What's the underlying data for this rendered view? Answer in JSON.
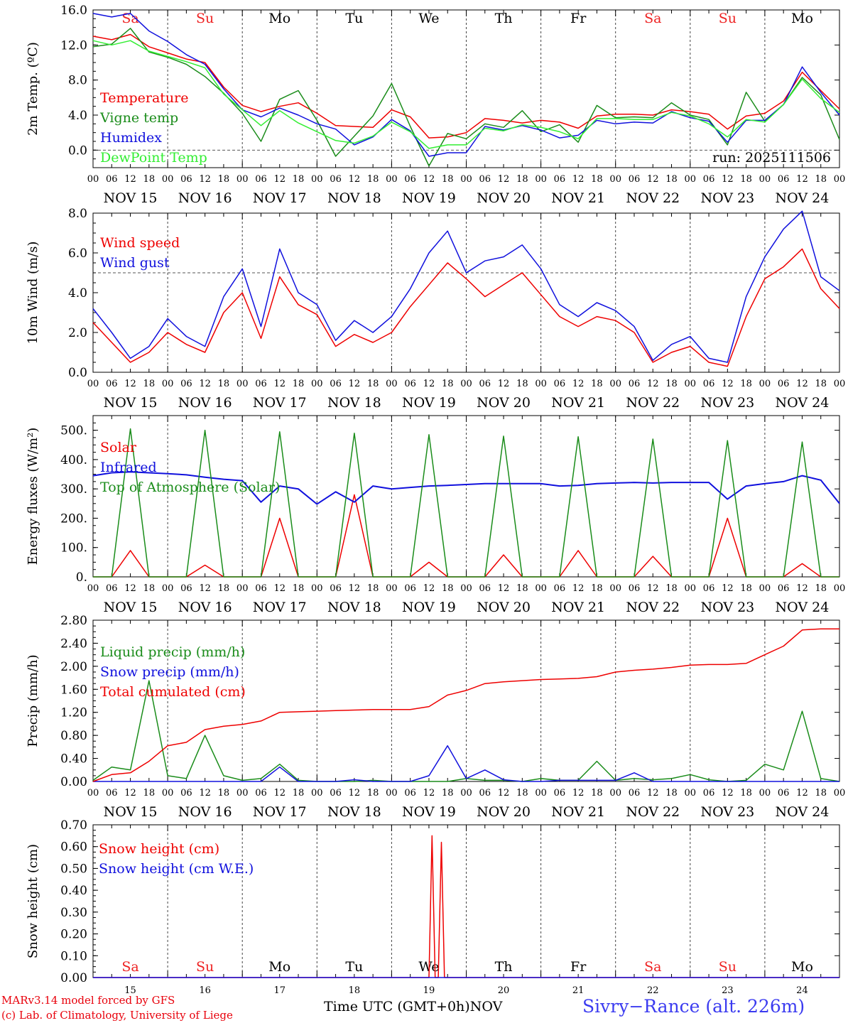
{
  "chart_data": [
    {
      "type": "line",
      "ylabel": "2m Temp. (ºC)",
      "ylim": [
        -2.0,
        16.0
      ],
      "yticks": [
        0.0,
        4.0,
        8.0,
        12.0,
        16.0
      ],
      "ytick_labels": [
        "0.0",
        "4.0",
        "8.0",
        "12.0",
        "16.0"
      ],
      "ref_line": 0.0,
      "annotation": "run: 2025111506",
      "day_labels": [
        "Sa",
        "Su",
        "Mo",
        "Tu",
        "We",
        "Th",
        "Fr",
        "Sa",
        "Su",
        "Mo"
      ],
      "date_labels": [
        "NOV 15",
        "NOV 16",
        "NOV 17",
        "NOV 18",
        "NOV 19",
        "NOV 20",
        "NOV 21",
        "NOV 22",
        "NOV 23",
        "NOV 24"
      ],
      "hour_labels": [
        "00",
        "06",
        "12",
        "18"
      ],
      "x_hours": [
        0,
        6,
        12,
        18,
        24,
        30,
        36,
        42,
        48,
        54,
        60,
        66,
        72,
        78,
        84,
        90,
        96,
        102,
        108,
        114,
        120,
        126,
        132,
        138,
        144,
        150,
        156,
        162,
        168,
        174,
        180,
        186,
        192,
        198,
        204,
        210,
        216,
        222,
        228,
        234,
        240
      ],
      "series": [
        {
          "name": "Temperature",
          "color": "#ee0000",
          "values": [
            13.0,
            12.6,
            13.2,
            11.8,
            11.1,
            10.4,
            10.0,
            7.2,
            5.1,
            4.4,
            5.0,
            5.4,
            4.2,
            2.8,
            2.7,
            2.6,
            4.6,
            3.8,
            1.4,
            1.5,
            2.0,
            3.6,
            3.4,
            3.1,
            3.4,
            3.2,
            2.5,
            3.9,
            4.1,
            4.1,
            4.0,
            4.6,
            4.4,
            4.1,
            2.4,
            3.9,
            4.2,
            5.6,
            8.9,
            6.8,
            4.7
          ]
        },
        {
          "name": "Vigne temp",
          "color": "#1a8c1a",
          "values": [
            11.8,
            12.1,
            13.9,
            11.2,
            10.6,
            9.8,
            8.4,
            6.5,
            4.2,
            1.0,
            5.8,
            6.8,
            3.4,
            -0.7,
            1.6,
            3.9,
            7.6,
            2.7,
            -1.8,
            1.9,
            1.3,
            3.0,
            2.6,
            4.5,
            2.1,
            2.9,
            0.9,
            5.1,
            3.7,
            3.8,
            3.7,
            5.4,
            4.0,
            3.5,
            0.6,
            6.6,
            3.3,
            5.2,
            8.3,
            6.3,
            1.2
          ]
        },
        {
          "name": "Humidex",
          "color": "#1010dd",
          "values": [
            15.6,
            15.2,
            15.6,
            13.6,
            12.4,
            10.9,
            9.8,
            7.0,
            4.6,
            3.8,
            4.8,
            4.0,
            3.0,
            2.4,
            0.6,
            1.5,
            3.5,
            2.2,
            -0.7,
            -0.3,
            -0.3,
            2.7,
            2.3,
            2.8,
            2.3,
            1.4,
            1.7,
            3.4,
            3.0,
            3.2,
            3.1,
            4.4,
            3.7,
            3.3,
            0.9,
            3.4,
            3.4,
            5.2,
            9.5,
            6.6,
            4.0
          ]
        },
        {
          "name": "DewPoint Temp",
          "color": "#33ee33",
          "values": [
            12.5,
            12.0,
            12.5,
            11.3,
            10.7,
            10.1,
            9.4,
            6.4,
            4.6,
            2.8,
            4.5,
            3.1,
            2.1,
            1.1,
            0.8,
            1.6,
            3.2,
            2.1,
            0.2,
            0.6,
            0.6,
            2.5,
            2.2,
            2.9,
            2.6,
            2.1,
            1.3,
            3.6,
            3.6,
            3.5,
            3.5,
            4.3,
            3.9,
            3.0,
            1.5,
            3.5,
            3.2,
            5.2,
            8.1,
            5.9,
            4.3
          ]
        }
      ]
    },
    {
      "type": "line",
      "ylabel": "10m Wind (m/s)",
      "ylim": [
        0.0,
        8.0
      ],
      "yticks": [
        0.0,
        2.0,
        4.0,
        6.0,
        8.0
      ],
      "ytick_labels": [
        "0.0",
        "2.0",
        "4.0",
        "6.0",
        "8.0"
      ],
      "ref_line": 5.0,
      "date_labels": [
        "NOV 15",
        "NOV 16",
        "NOV 17",
        "NOV 18",
        "NOV 19",
        "NOV 20",
        "NOV 21",
        "NOV 22",
        "NOV 23",
        "NOV 24"
      ],
      "hour_labels": [
        "00",
        "06",
        "12",
        "18"
      ],
      "x_hours": [
        0,
        6,
        12,
        18,
        24,
        30,
        36,
        42,
        48,
        54,
        60,
        66,
        72,
        78,
        84,
        90,
        96,
        102,
        108,
        114,
        120,
        126,
        132,
        138,
        144,
        150,
        156,
        162,
        168,
        174,
        180,
        186,
        192,
        198,
        204,
        210,
        216,
        222,
        228,
        234,
        240
      ],
      "series": [
        {
          "name": "Wind speed",
          "color": "#ee0000",
          "values": [
            2.5,
            1.5,
            0.5,
            1.0,
            2.0,
            1.4,
            1.0,
            3.0,
            4.0,
            1.7,
            4.8,
            3.4,
            2.9,
            1.3,
            1.9,
            1.5,
            2.0,
            3.3,
            4.4,
            5.5,
            4.7,
            3.8,
            4.4,
            5.0,
            3.9,
            2.8,
            2.3,
            2.8,
            2.6,
            2.0,
            0.5,
            1.0,
            1.3,
            0.5,
            0.3,
            2.8,
            4.7,
            5.3,
            6.2,
            4.2,
            3.2
          ]
        },
        {
          "name": "Wind gust",
          "color": "#1010dd",
          "values": [
            3.2,
            2.0,
            0.7,
            1.3,
            2.7,
            1.8,
            1.3,
            3.8,
            5.2,
            2.3,
            6.2,
            4.0,
            3.4,
            1.6,
            2.6,
            2.0,
            2.8,
            4.2,
            6.0,
            7.1,
            5.0,
            5.6,
            5.8,
            6.4,
            5.2,
            3.4,
            2.8,
            3.5,
            3.1,
            2.3,
            0.6,
            1.4,
            1.8,
            0.7,
            0.5,
            3.8,
            5.8,
            7.2,
            8.1,
            4.8,
            4.1
          ]
        }
      ]
    },
    {
      "type": "line",
      "ylabel": "Energy fluxes (W/m²)",
      "ylim": [
        0,
        550
      ],
      "yticks": [
        0,
        100,
        200,
        300,
        400,
        500
      ],
      "ytick_labels": [
        "0.",
        "100.",
        "200.",
        "300.",
        "400.",
        "500."
      ],
      "date_labels": [
        "NOV 15",
        "NOV 16",
        "NOV 17",
        "NOV 18",
        "NOV 19",
        "NOV 20",
        "NOV 21",
        "NOV 22",
        "NOV 23",
        "NOV 24"
      ],
      "hour_labels": [
        "00",
        "06",
        "12",
        "18"
      ],
      "x_hours": [
        0,
        6,
        12,
        18,
        24,
        30,
        36,
        42,
        48,
        54,
        60,
        66,
        72,
        78,
        84,
        90,
        96,
        102,
        108,
        114,
        120,
        126,
        132,
        138,
        144,
        150,
        156,
        162,
        168,
        174,
        180,
        186,
        192,
        198,
        204,
        210,
        216,
        222,
        228,
        234,
        240
      ],
      "series": [
        {
          "name": "Solar",
          "color": "#ee0000",
          "values": [
            0,
            0,
            90,
            0,
            0,
            0,
            40,
            0,
            0,
            0,
            200,
            0,
            0,
            0,
            280,
            0,
            0,
            0,
            50,
            0,
            0,
            0,
            75,
            0,
            0,
            0,
            90,
            0,
            0,
            0,
            70,
            0,
            0,
            0,
            200,
            0,
            0,
            0,
            45,
            0,
            0
          ]
        },
        {
          "name": "Infrared",
          "color": "#1010dd",
          "values": [
            345,
            355,
            358,
            355,
            352,
            348,
            340,
            333,
            328,
            255,
            310,
            300,
            248,
            290,
            255,
            310,
            300,
            305,
            310,
            312,
            315,
            318,
            318,
            318,
            318,
            310,
            312,
            318,
            320,
            322,
            320,
            322,
            322,
            322,
            265,
            310,
            318,
            325,
            345,
            330,
            250
          ]
        },
        {
          "name": "Top of Atmosphere (Solar)",
          "color": "#1a8c1a",
          "values": [
            0,
            0,
            505,
            0,
            0,
            0,
            500,
            0,
            0,
            0,
            495,
            0,
            0,
            0,
            490,
            0,
            0,
            0,
            485,
            0,
            0,
            0,
            480,
            0,
            0,
            0,
            478,
            0,
            0,
            0,
            470,
            0,
            0,
            0,
            465,
            0,
            0,
            0,
            460,
            0,
            0
          ]
        }
      ]
    },
    {
      "type": "line",
      "ylabel": "Precip (mm/h)",
      "ylim": [
        0.0,
        2.8
      ],
      "yticks": [
        0.0,
        0.4,
        0.8,
        1.2,
        1.6,
        2.0,
        2.4,
        2.8
      ],
      "ytick_labels": [
        "0.00",
        "0.40",
        "0.80",
        "1.20",
        "1.60",
        "2.00",
        "2.40",
        "2.80"
      ],
      "date_labels": [
        "NOV 15",
        "NOV 16",
        "NOV 17",
        "NOV 18",
        "NOV 19",
        "NOV 20",
        "NOV 21",
        "NOV 22",
        "NOV 23",
        "NOV 24"
      ],
      "hour_labels": [
        "00",
        "06",
        "12",
        "18"
      ],
      "x_hours": [
        0,
        6,
        12,
        18,
        24,
        30,
        36,
        42,
        48,
        54,
        60,
        66,
        72,
        78,
        84,
        90,
        96,
        102,
        108,
        114,
        120,
        126,
        132,
        138,
        144,
        150,
        156,
        162,
        168,
        174,
        180,
        186,
        192,
        198,
        204,
        210,
        216,
        222,
        228,
        234,
        240
      ],
      "series": [
        {
          "name": "Liquid precip (mm/h)",
          "color": "#1a8c1a",
          "values": [
            0.02,
            0.25,
            0.2,
            1.75,
            0.1,
            0.05,
            0.8,
            0.1,
            0.02,
            0.05,
            0.3,
            0.02,
            0.0,
            0.0,
            0.0,
            0.02,
            0.0,
            0.0,
            0.0,
            0.0,
            0.05,
            0.02,
            0.02,
            0.0,
            0.05,
            0.02,
            0.02,
            0.35,
            0.02,
            0.05,
            0.03,
            0.05,
            0.12,
            0.03,
            0.0,
            0.02,
            0.3,
            0.2,
            1.22,
            0.05,
            0.0
          ]
        },
        {
          "name": "Snow precip (mm/h)",
          "color": "#1010dd",
          "values": [
            0,
            0,
            0,
            0,
            0,
            0,
            0,
            0,
            0,
            0,
            0.25,
            0,
            0,
            0,
            0.03,
            0,
            0,
            0,
            0.1,
            0.62,
            0.05,
            0.2,
            0.03,
            0,
            0,
            0.02,
            0.02,
            0.02,
            0.02,
            0.15,
            0,
            0,
            0,
            0,
            0,
            0,
            0,
            0,
            0,
            0,
            0
          ]
        },
        {
          "name": "Total cumulated (cm)",
          "color": "#ee0000",
          "values": [
            0.0,
            0.12,
            0.15,
            0.35,
            0.62,
            0.68,
            0.9,
            0.96,
            0.99,
            1.05,
            1.2,
            1.21,
            1.22,
            1.23,
            1.24,
            1.25,
            1.25,
            1.25,
            1.3,
            1.5,
            1.58,
            1.7,
            1.73,
            1.75,
            1.77,
            1.78,
            1.79,
            1.82,
            1.9,
            1.93,
            1.95,
            1.98,
            2.02,
            2.03,
            2.03,
            2.05,
            2.2,
            2.35,
            2.63,
            2.65,
            2.65
          ]
        }
      ]
    },
    {
      "type": "line",
      "ylabel": "Snow height (cm)",
      "ylim": [
        0.0,
        0.7
      ],
      "yticks": [
        0.0,
        0.1,
        0.2,
        0.3,
        0.4,
        0.5,
        0.6,
        0.7
      ],
      "ytick_labels": [
        "0.00",
        "0.10",
        "0.20",
        "0.30",
        "0.40",
        "0.50",
        "0.60",
        "0.70"
      ],
      "day_labels": [
        "Sa",
        "Su",
        "Mo",
        "Tu",
        "We",
        "Th",
        "Fr",
        "Sa",
        "Su",
        "Mo"
      ],
      "day_numbers": [
        "15",
        "16",
        "17",
        "18",
        "19",
        "20",
        "21",
        "22",
        "23",
        "24"
      ],
      "x_hours": [
        0,
        24,
        48,
        72,
        96,
        108,
        109,
        110,
        111,
        112,
        113,
        114,
        120,
        144,
        168,
        192,
        216,
        240
      ],
      "series": [
        {
          "name": "Snow height (cm)",
          "color": "#ee0000",
          "values": [
            0,
            0,
            0,
            0,
            0,
            0,
            0.65,
            0,
            0,
            0.62,
            0,
            0,
            0,
            0,
            0,
            0,
            0,
            0
          ]
        },
        {
          "name": "Snow height (cm W.E.)",
          "color": "#1010dd",
          "values": [
            0,
            0,
            0,
            0,
            0,
            0,
            0,
            0,
            0,
            0,
            0,
            0,
            0,
            0,
            0,
            0,
            0,
            0
          ]
        }
      ]
    }
  ],
  "footer": {
    "model_line": "MARv3.14 model forced by GFS",
    "credit_line": "(c) Lab. of Climatology, University of Liege",
    "xlabel": "Time UTC (GMT+0h)",
    "month": "NOV",
    "site": "Sivry−Rance (alt. 226m)"
  },
  "colors": {
    "weekend": "#ee2222",
    "weekday": "#000000",
    "site_text": "#3b3bf0",
    "footer_text": "#e8000b"
  }
}
